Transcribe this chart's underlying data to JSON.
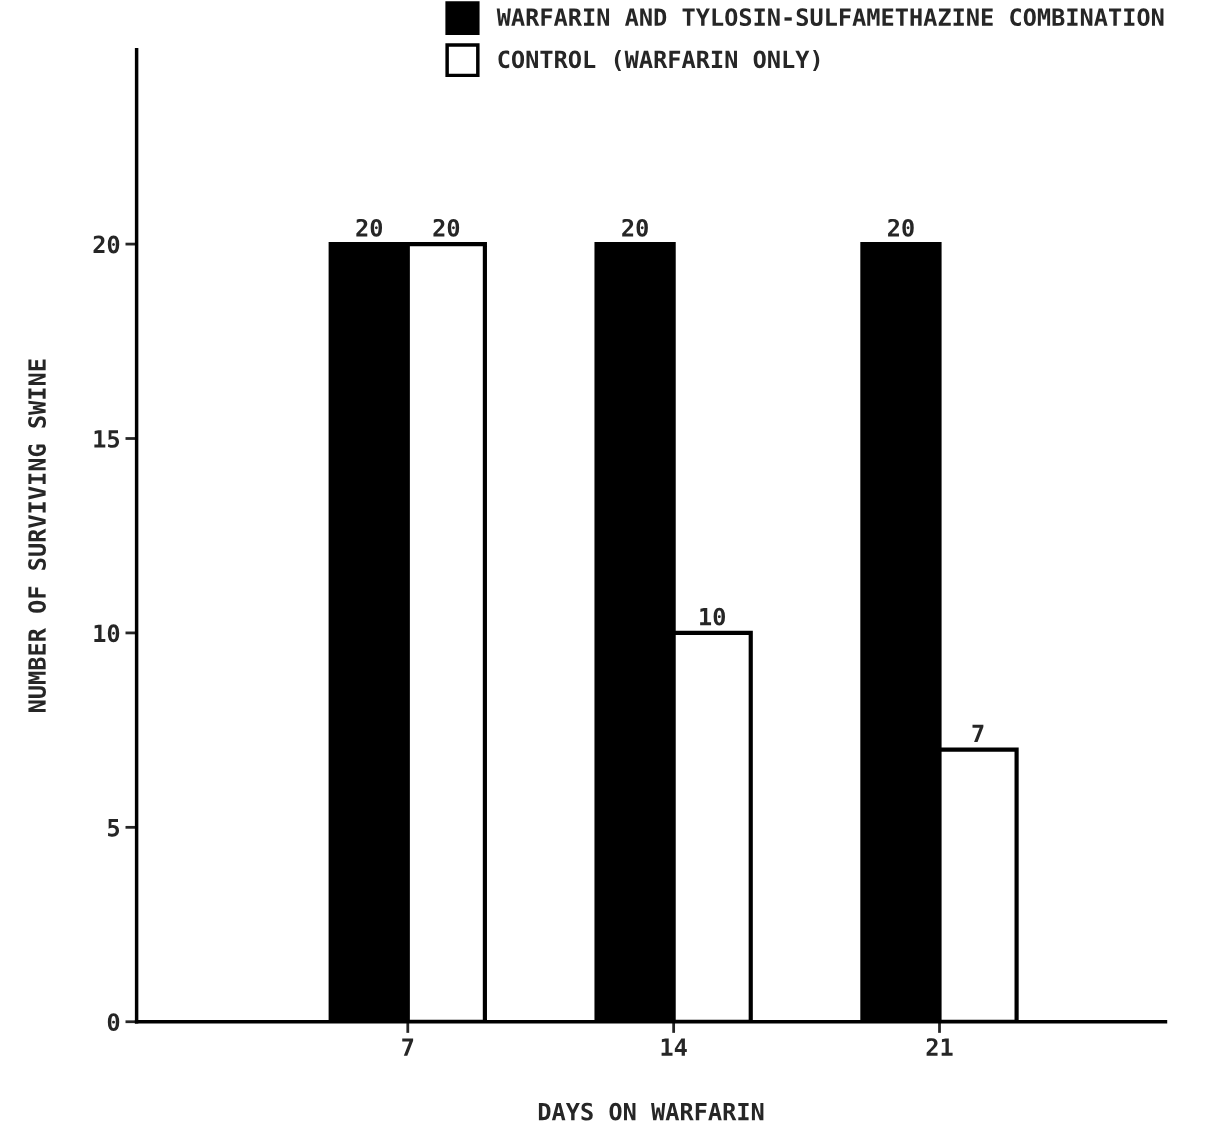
{
  "chart_data": {
    "type": "bar",
    "xlabel": "DAYS ON WARFARIN",
    "ylabel": "NUMBER OF SURVIVING SWINE",
    "categories": [
      "7",
      "14",
      "21"
    ],
    "series": [
      {
        "name": "WARFARIN AND TYLOSIN-SULFAMETHAZINE COMBINATION",
        "color": "#000000",
        "values": [
          20,
          20,
          20
        ]
      },
      {
        "name": "CONTROL (WARFARIN ONLY)",
        "color": "#ffffff",
        "values": [
          20,
          10,
          7
        ]
      }
    ],
    "ylim": [
      0,
      25
    ],
    "yticks": [
      0,
      5,
      10,
      15,
      20
    ],
    "data_labels": true,
    "grid": false,
    "legend": "top right"
  }
}
